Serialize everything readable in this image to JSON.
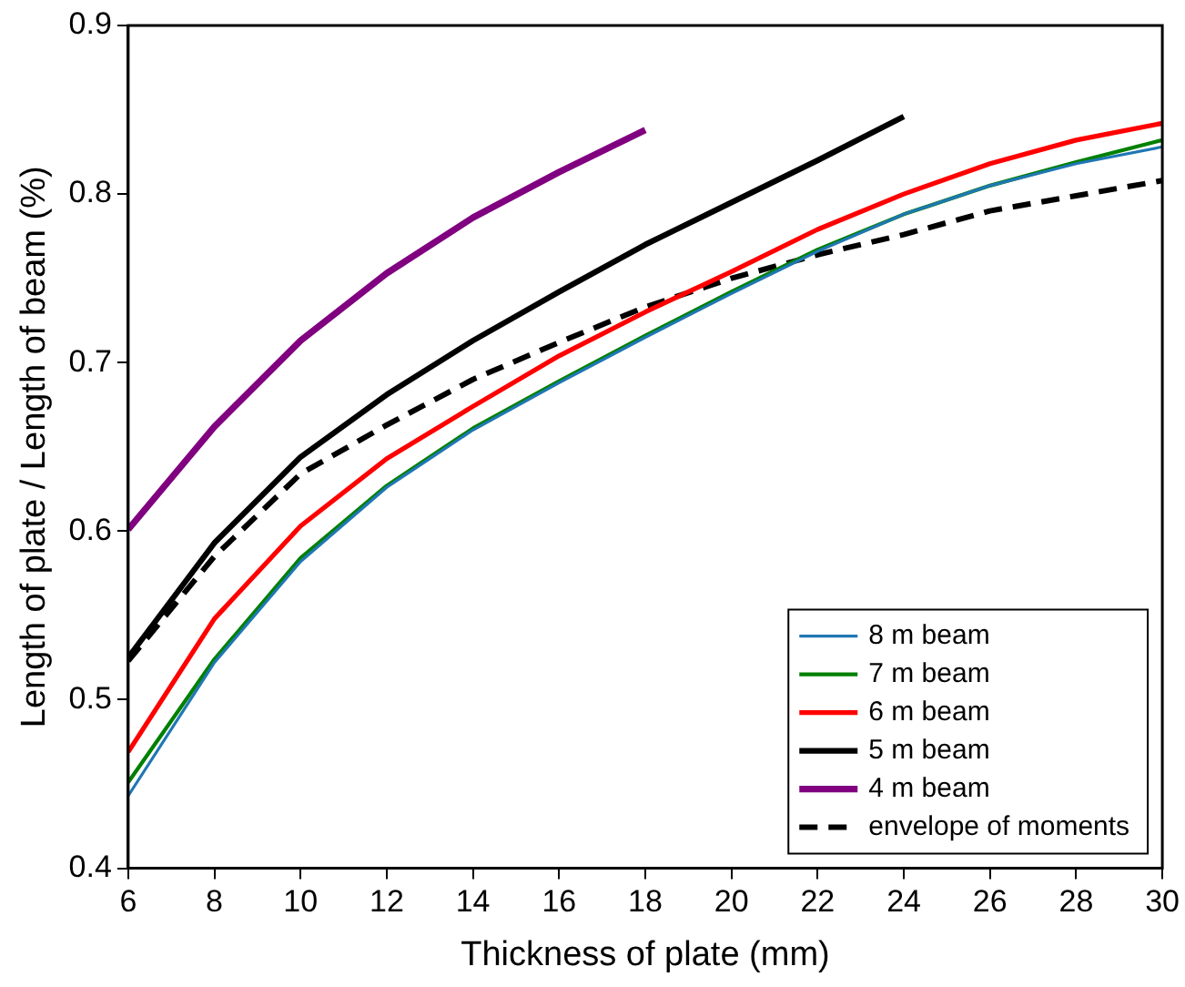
{
  "chart_data": {
    "type": "line",
    "xlabel": "Thickness of plate (mm)",
    "ylabel": "Length of plate / Length of beam (%)",
    "x": [
      6,
      8,
      10,
      12,
      14,
      16,
      18,
      20,
      22,
      24,
      26,
      28,
      30
    ],
    "xlim": [
      6,
      30
    ],
    "xticks": [
      6,
      8,
      10,
      12,
      14,
      16,
      18,
      20,
      22,
      24,
      26,
      28,
      30
    ],
    "ylim": [
      0.4,
      0.9
    ],
    "yticks": [
      0.4,
      0.5,
      0.6,
      0.7,
      0.8,
      0.9
    ],
    "grid": false,
    "legend": "bottom right",
    "marker": "none",
    "series": [
      {
        "name": "8 m beam",
        "color": "#1f77b4",
        "values": [
          0.443,
          0.522,
          0.582,
          0.626,
          0.66,
          0.688,
          0.715,
          0.741,
          0.766,
          0.788,
          0.805,
          0.818,
          0.828
        ]
      },
      {
        "name": "7 m beam",
        "color": "#008000",
        "values": [
          0.451,
          0.524,
          0.584,
          0.627,
          0.661,
          0.689,
          0.716,
          0.742,
          0.767,
          0.788,
          0.805,
          0.819,
          0.832
        ]
      },
      {
        "name": "6 m beam",
        "color": "#ff0000",
        "values": [
          0.469,
          0.548,
          0.603,
          0.643,
          0.674,
          0.704,
          0.73,
          0.754,
          0.779,
          0.8,
          0.818,
          0.832,
          0.842
        ]
      },
      {
        "name": "5 m beam",
        "color": "#000000",
        "x": [
          6,
          8,
          10,
          12,
          14,
          16,
          18,
          20,
          22,
          24
        ],
        "values": [
          0.525,
          0.593,
          0.644,
          0.681,
          0.713,
          0.742,
          0.77,
          0.795,
          0.82,
          0.846
        ]
      },
      {
        "name": "4 m beam",
        "color": "#800080",
        "x": [
          6,
          8,
          10,
          12,
          14,
          16,
          18
        ],
        "values": [
          0.601,
          0.662,
          0.713,
          0.753,
          0.786,
          0.813,
          0.838
        ]
      },
      {
        "name": "envelope of moments",
        "color": "#000000",
        "line_style": "dashed",
        "values": [
          0.523,
          0.585,
          0.634,
          0.663,
          0.69,
          0.712,
          0.733,
          0.75,
          0.764,
          0.776,
          0.79,
          0.799,
          0.808
        ]
      }
    ]
  }
}
